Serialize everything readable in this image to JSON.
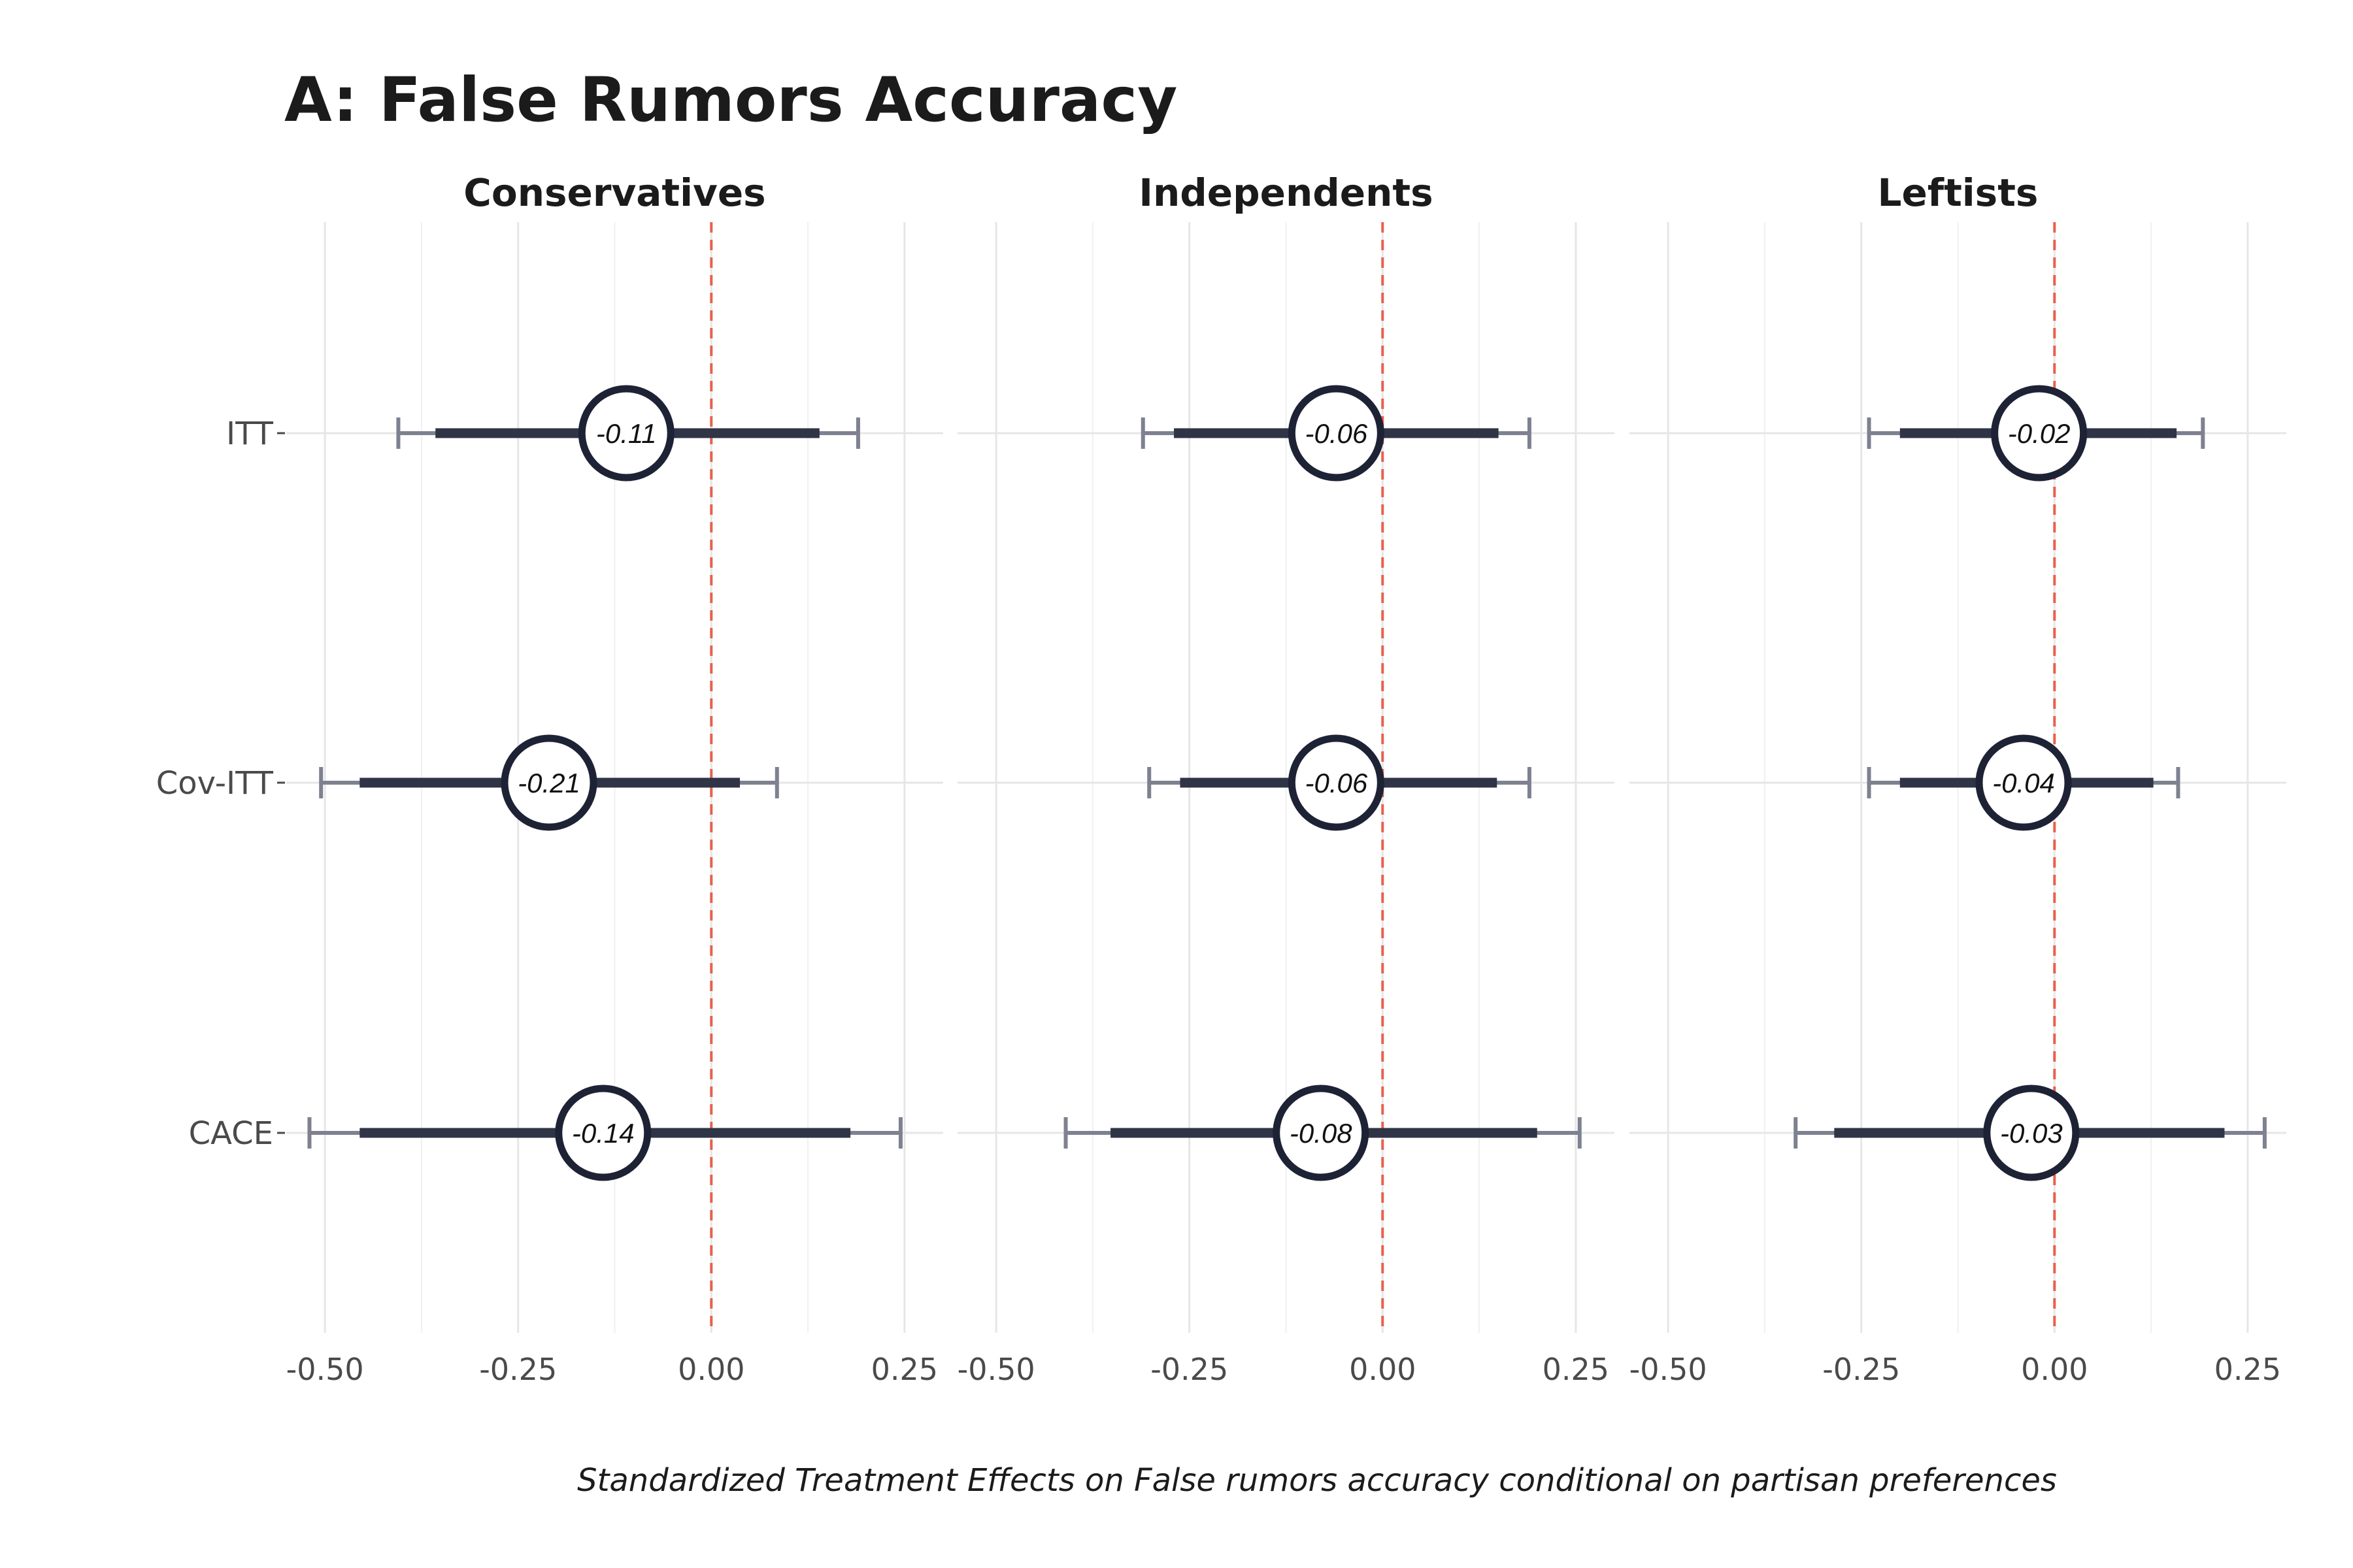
{
  "chart_data": {
    "type": "scatter",
    "title": "A: False Rumors Accuracy",
    "caption": "Standardized Treatment Effects on False rumors accuracy conditional on partisan preferences",
    "xlim": [
      -0.55,
      0.3
    ],
    "x_ticks": [
      "-0.50",
      "-0.25",
      "0.00",
      "0.25"
    ],
    "x_tick_values": [
      -0.5,
      -0.25,
      0.0,
      0.25
    ],
    "reference_line": 0.0,
    "categories": [
      "ITT",
      "Cov-ITT",
      "CACE"
    ],
    "colors": {
      "point": "#1e2235",
      "inner_ci": "#2f3446",
      "outer_ci": "#7e8190",
      "reference": "#e8614f",
      "grid": "#e6e6e6"
    },
    "facets": [
      {
        "name": "Conservatives",
        "estimates": [
          {
            "category": "ITT",
            "estimate": -0.11,
            "label": "-0.11",
            "ci90": [
              -0.357,
              0.14
            ],
            "ci95": [
              -0.405,
              0.19
            ]
          },
          {
            "category": "Cov-ITT",
            "estimate": -0.21,
            "label": "-0.21",
            "ci90": [
              -0.455,
              0.037
            ],
            "ci95": [
              -0.505,
              0.085
            ]
          },
          {
            "category": "CACE",
            "estimate": -0.14,
            "label": "-0.14",
            "ci90": [
              -0.455,
              0.18
            ],
            "ci95": [
              -0.52,
              0.245
            ]
          }
        ]
      },
      {
        "name": "Independents",
        "estimates": [
          {
            "category": "ITT",
            "estimate": -0.06,
            "label": "-0.06",
            "ci90": [
              -0.27,
              0.15
            ],
            "ci95": [
              -0.31,
              0.19
            ]
          },
          {
            "category": "Cov-ITT",
            "estimate": -0.06,
            "label": "-0.06",
            "ci90": [
              -0.262,
              0.148
            ],
            "ci95": [
              -0.302,
              0.19
            ]
          },
          {
            "category": "CACE",
            "estimate": -0.08,
            "label": "-0.08",
            "ci90": [
              -0.352,
              0.2
            ],
            "ci95": [
              -0.41,
              0.255
            ]
          }
        ]
      },
      {
        "name": "Leftists",
        "estimates": [
          {
            "category": "ITT",
            "estimate": -0.02,
            "label": "-0.02",
            "ci90": [
              -0.2,
              0.158
            ],
            "ci95": [
              -0.24,
              0.192
            ]
          },
          {
            "category": "Cov-ITT",
            "estimate": -0.04,
            "label": "-0.04",
            "ci90": [
              -0.2,
              0.128
            ],
            "ci95": [
              -0.24,
              0.16
            ]
          },
          {
            "category": "CACE",
            "estimate": -0.03,
            "label": "-0.03",
            "ci90": [
              -0.285,
              0.22
            ],
            "ci95": [
              -0.335,
              0.272
            ]
          }
        ]
      }
    ]
  }
}
